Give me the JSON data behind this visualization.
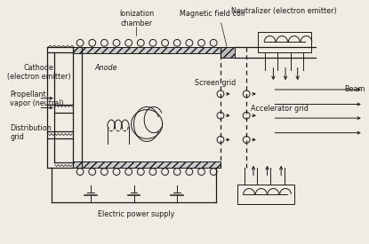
{
  "bg_color": "#f0ece4",
  "line_color": "#1a1a1a",
  "labels": {
    "ionization_chamber": "Ionization\nchamber",
    "magnetic_field_coil": "Magnetic field coil",
    "neutralizer": "Neutralizer (electron emitter)",
    "cathode": "Cathode\n(electron emitter)",
    "anode": "Anode",
    "screen_grid": "Screen grid",
    "accelerator_grid": "Accelerator grid",
    "propellant": "Propellant\nvapor (neutral)",
    "distribution_grid": "Distribution\ngrid",
    "electric_power": "Electric power supply",
    "beam": "Beam"
  },
  "font_size": 5.8
}
